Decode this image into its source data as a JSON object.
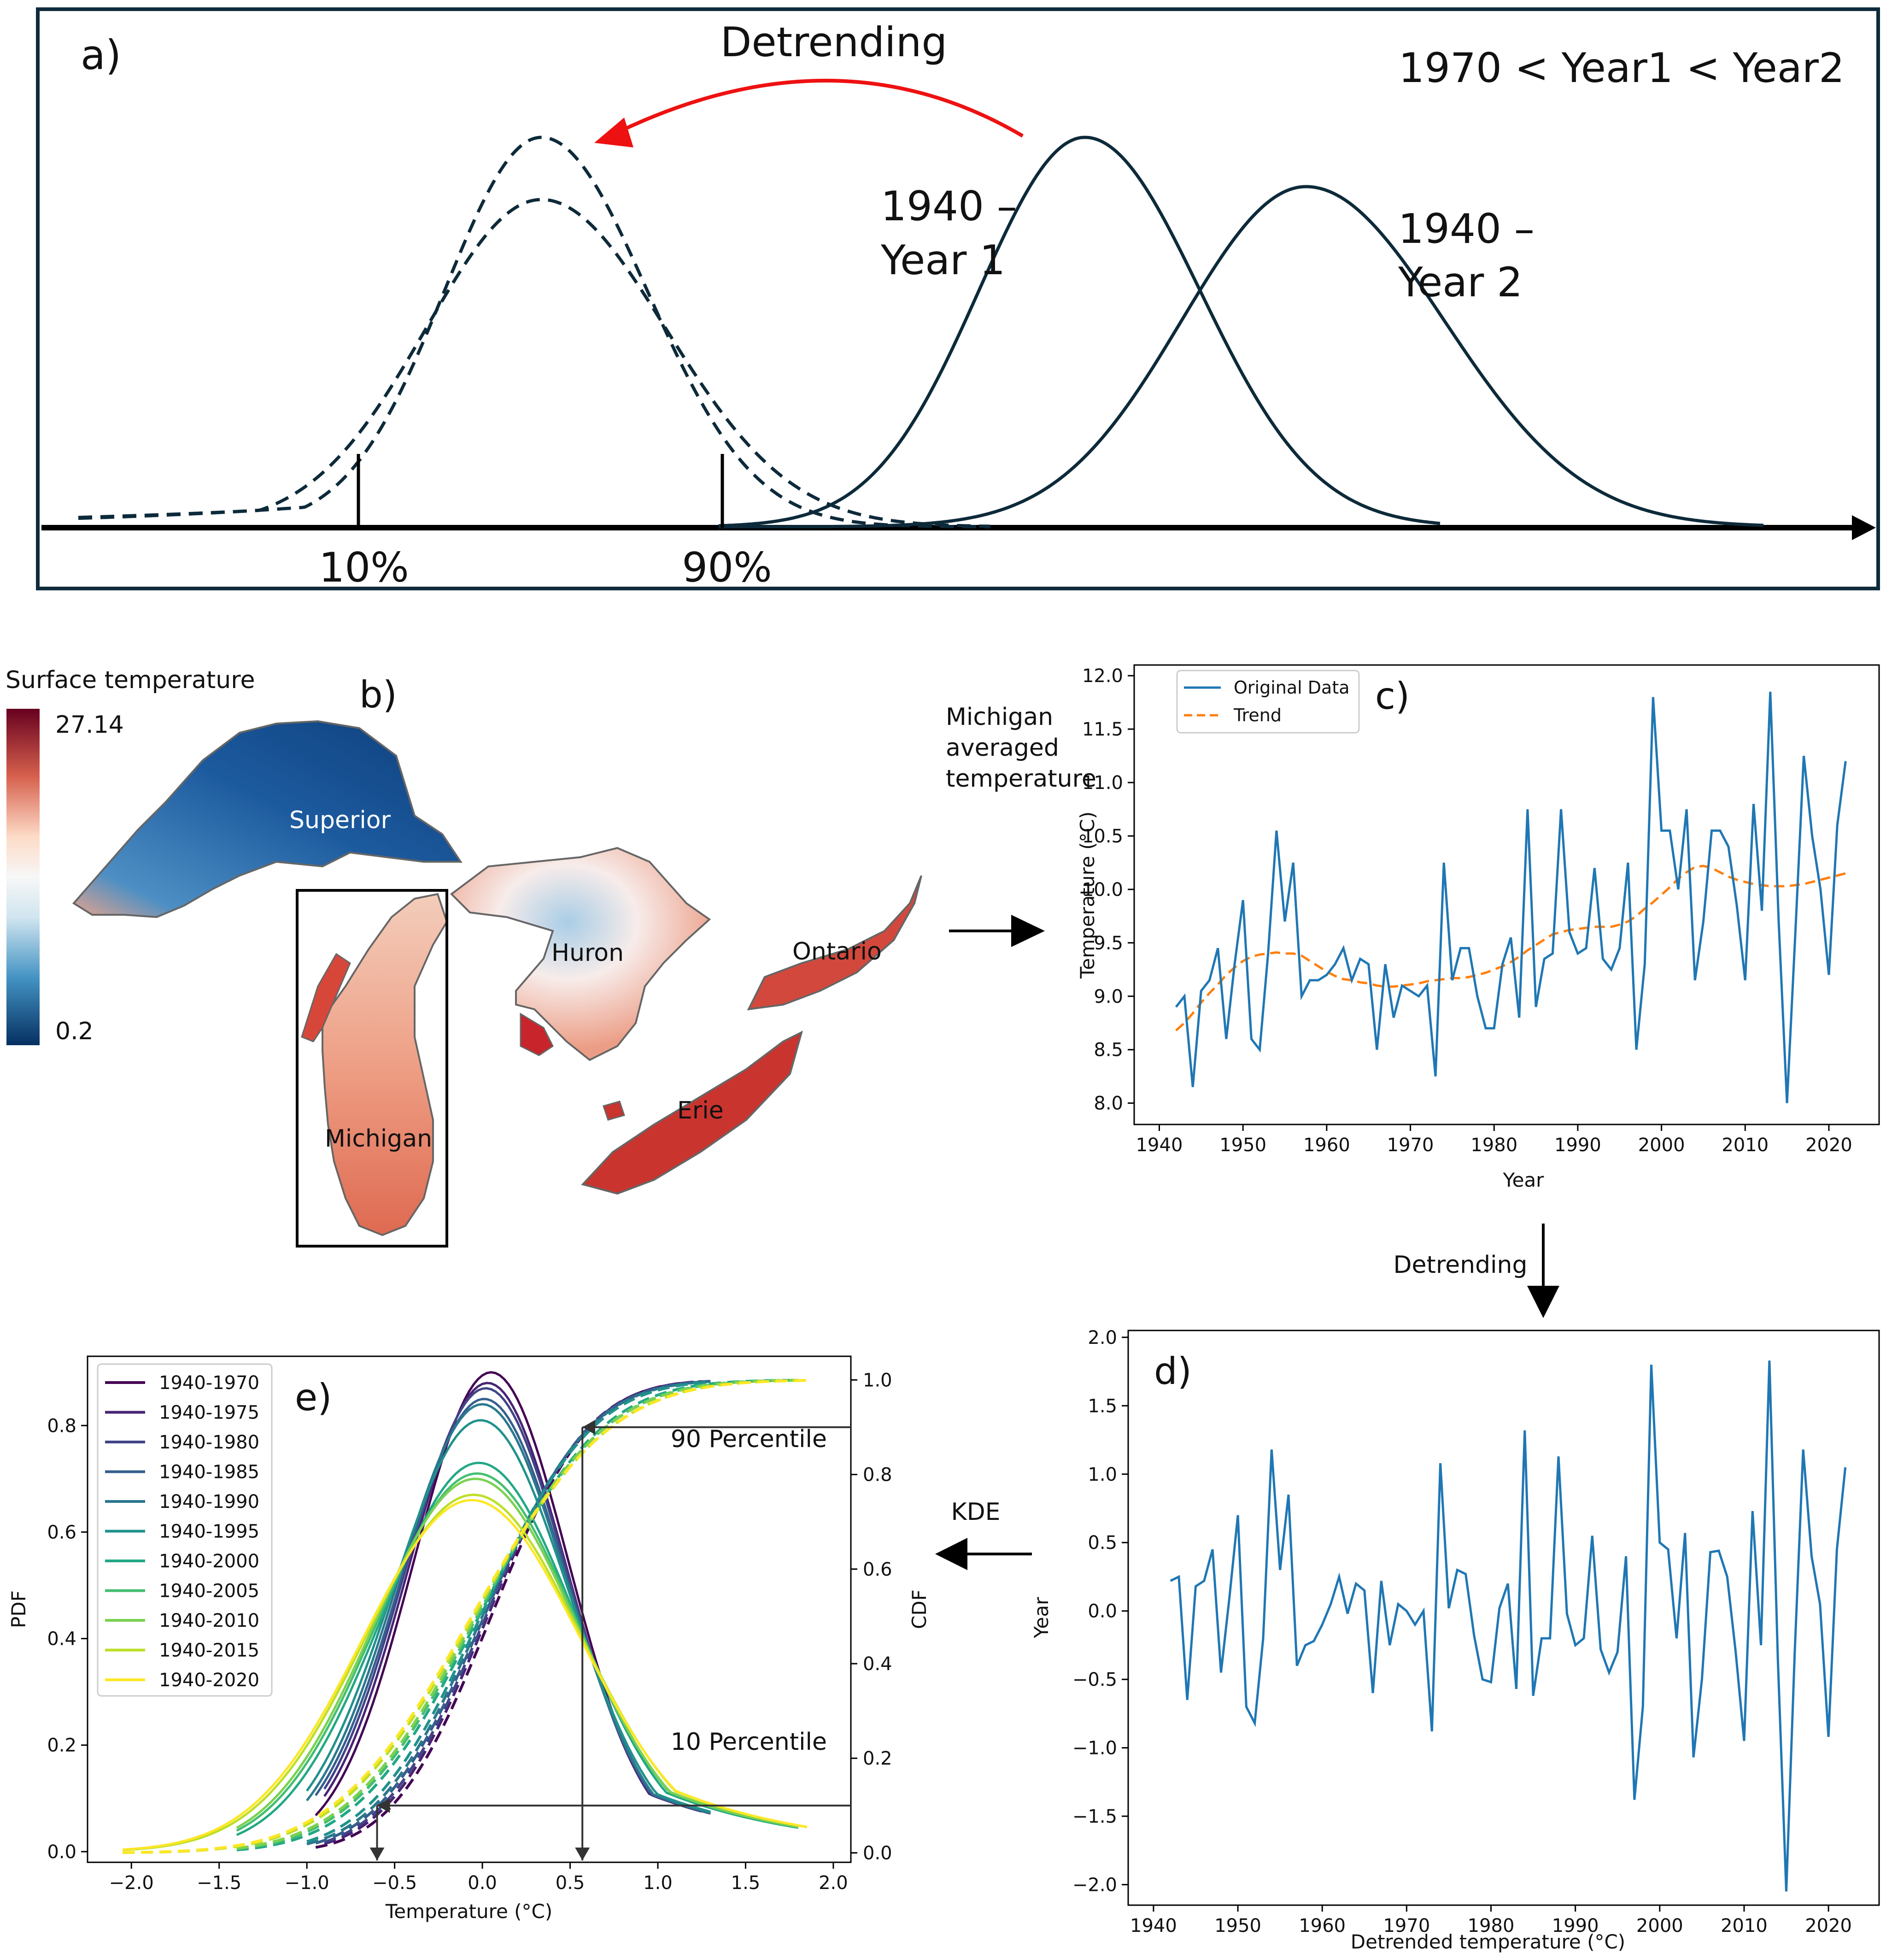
{
  "panel_a": {
    "label": "a)",
    "title": "Detrending",
    "condition": "1970 < Year1 < Year2",
    "curve1_label_line1": "1940 –",
    "curve1_label_line2": "Year 1",
    "curve2_label_line1": "1940 –",
    "curve2_label_line2": "Year 2",
    "p10_label": "10%",
    "p90_label": "90%",
    "colors": {
      "curve": "#0d2a3a",
      "arrow": "#ee1111",
      "frame": "#0f2b3c"
    }
  },
  "panel_b": {
    "label": "b)",
    "colorbar_title": "Surface temperature",
    "colorbar_max": "27.14",
    "colorbar_min": "0.2",
    "lakes": {
      "superior": "Superior",
      "michigan": "Michigan",
      "huron": "Huron",
      "erie": "Erie",
      "ontario": "Ontario"
    },
    "colors": {
      "cold": "#0b3d7a",
      "mid": "#f7f7f7",
      "warm": "#b2182b"
    }
  },
  "flow": {
    "michigan_line1": "Michigan",
    "michigan_line2": "averaged",
    "michigan_line3": "temperature",
    "detrending": "Detrending",
    "kde": "KDE"
  },
  "chart_data": [
    {
      "id": "c",
      "type": "line",
      "label": "c)",
      "xlabel": "Year",
      "ylabel": "Temperature (°C)",
      "xlim": [
        1937,
        2026
      ],
      "ylim": [
        7.8,
        12.1
      ],
      "xticks": [
        1940,
        1950,
        1960,
        1970,
        1980,
        1990,
        2000,
        2010,
        2020
      ],
      "yticks": [
        8.0,
        8.5,
        9.0,
        9.5,
        10.0,
        10.5,
        11.0,
        11.5,
        12.0
      ],
      "legend": [
        "Original Data",
        "Trend"
      ],
      "colors": [
        "#1f77b4",
        "#ff7f0e"
      ],
      "x_start": 1942,
      "original": [
        8.9,
        9.0,
        8.15,
        9.05,
        9.15,
        9.45,
        8.6,
        9.3,
        9.9,
        8.6,
        8.5,
        9.4,
        10.55,
        9.7,
        10.25,
        9.0,
        9.15,
        9.15,
        9.2,
        9.3,
        9.45,
        9.15,
        9.35,
        9.3,
        8.5,
        9.3,
        8.8,
        9.1,
        9.05,
        9.0,
        9.1,
        8.25,
        10.25,
        9.15,
        9.45,
        9.45,
        9.0,
        8.7,
        8.7,
        9.3,
        9.55,
        8.8,
        10.75,
        8.9,
        9.35,
        9.4,
        10.75,
        9.6,
        9.4,
        9.45,
        10.2,
        9.35,
        9.25,
        9.45,
        10.25,
        8.5,
        9.3,
        11.8,
        10.55,
        10.55,
        10.0,
        10.75,
        9.15,
        9.7,
        10.55,
        10.55,
        10.4,
        9.85,
        9.15,
        10.8,
        9.8,
        11.85,
        9.7,
        8.0,
        9.6,
        11.25,
        10.5,
        10.0,
        9.2,
        10.6,
        11.2
      ],
      "trend": [
        8.68,
        8.75,
        8.84,
        8.94,
        9.03,
        9.11,
        9.2,
        9.27,
        9.33,
        9.37,
        9.39,
        9.4,
        9.41,
        9.4,
        9.4,
        9.38,
        9.33,
        9.28,
        9.23,
        9.19,
        9.16,
        9.15,
        9.13,
        9.12,
        9.1,
        9.09,
        9.09,
        9.1,
        9.11,
        9.12,
        9.14,
        9.15,
        9.16,
        9.17,
        9.17,
        9.18,
        9.2,
        9.22,
        9.25,
        9.28,
        9.32,
        9.37,
        9.43,
        9.48,
        9.53,
        9.58,
        9.6,
        9.62,
        9.63,
        9.64,
        9.65,
        9.65,
        9.65,
        9.67,
        9.7,
        9.75,
        9.82,
        9.88,
        9.95,
        10.02,
        10.1,
        10.16,
        10.21,
        10.22,
        10.2,
        10.16,
        10.12,
        10.09,
        10.07,
        10.05,
        10.04,
        10.03,
        10.03,
        10.03,
        10.04,
        10.05,
        10.07,
        10.09,
        10.11,
        10.13,
        10.15
      ]
    },
    {
      "id": "d",
      "type": "line",
      "label": "d)",
      "xlabel": "Detrended temperature (°C)",
      "ylabel": "Year",
      "xlim": [
        1937,
        2026
      ],
      "ylim": [
        -2.15,
        2.05
      ],
      "xticks": [
        1940,
        1950,
        1960,
        1970,
        1980,
        1990,
        2000,
        2010,
        2020
      ],
      "yticks": [
        2.0,
        1.5,
        1.0,
        0.5,
        0.0,
        -0.5,
        -1.0,
        -1.5,
        -2.0
      ],
      "ytick_labels": [
        "2.0",
        "1.5",
        "1.0",
        "0.5",
        "0.0",
        "−0.5",
        "−1.0",
        "−1.5",
        "−2.0"
      ],
      "colors": [
        "#1f77b4"
      ],
      "x_start": 1942,
      "values": [
        0.22,
        0.25,
        -0.65,
        0.18,
        0.22,
        0.45,
        -0.45,
        0.1,
        0.7,
        -0.7,
        -0.82,
        -0.2,
        1.18,
        0.3,
        0.85,
        -0.4,
        -0.25,
        -0.22,
        -0.1,
        0.05,
        0.25,
        -0.02,
        0.2,
        0.15,
        -0.6,
        0.22,
        -0.25,
        0.05,
        0.0,
        -0.1,
        0.0,
        -0.88,
        1.08,
        0.02,
        0.3,
        0.27,
        -0.18,
        -0.5,
        -0.52,
        0.02,
        0.2,
        -0.57,
        1.32,
        -0.62,
        -0.2,
        -0.2,
        1.13,
        -0.02,
        -0.25,
        -0.2,
        0.55,
        -0.28,
        -0.45,
        -0.3,
        0.4,
        -1.38,
        -0.7,
        1.8,
        0.5,
        0.45,
        -0.2,
        0.57,
        -1.07,
        -0.5,
        0.43,
        0.44,
        0.25,
        -0.3,
        -0.95,
        0.73,
        -0.25,
        1.83,
        -0.35,
        -2.05,
        -0.3,
        1.18,
        0.4,
        0.05,
        -0.92,
        0.45,
        1.05
      ]
    },
    {
      "id": "e",
      "type": "line",
      "label": "e)",
      "xlabel": "Temperature (°C)",
      "ylabel": "PDF",
      "ylabel_right": "CDF",
      "xlim": [
        -2.25,
        2.1
      ],
      "ylim": [
        -0.02,
        0.93
      ],
      "ylim_right": [
        -0.02,
        1.05
      ],
      "xticks": [
        -2.0,
        -1.5,
        -1.0,
        -0.5,
        0.0,
        0.5,
        1.0,
        1.5,
        2.0
      ],
      "xtick_labels": [
        "−2.0",
        "−1.5",
        "−1.0",
        "−0.5",
        "0.0",
        "0.5",
        "1.0",
        "1.5",
        "2.0"
      ],
      "yticks": [
        0.0,
        0.2,
        0.4,
        0.6,
        0.8
      ],
      "yticks_right": [
        0.0,
        0.2,
        0.4,
        0.6,
        0.8,
        1.0
      ],
      "percentile_90_label": "90 Percentile",
      "percentile_10_label": "10 Percentile",
      "percentile_90": {
        "cdf": 0.9,
        "temperature": 0.57
      },
      "percentile_10": {
        "cdf": 0.1,
        "temperature": -0.6
      },
      "series": [
        {
          "name": "1940-1970",
          "color": "#440154",
          "mean": 0.05,
          "sd": 0.44,
          "peak": 0.9,
          "min": -0.95,
          "max": 1.2
        },
        {
          "name": "1940-1975",
          "color": "#482475",
          "mean": 0.03,
          "sd": 0.45,
          "peak": 0.88,
          "min": -0.9,
          "max": 1.25
        },
        {
          "name": "1940-1980",
          "color": "#414487",
          "mean": 0.02,
          "sd": 0.46,
          "peak": 0.87,
          "min": -0.9,
          "max": 1.3
        },
        {
          "name": "1940-1985",
          "color": "#355f8d",
          "mean": 0.01,
          "sd": 0.47,
          "peak": 0.85,
          "min": -0.95,
          "max": 1.3
        },
        {
          "name": "1940-1990",
          "color": "#2a788e",
          "mean": 0.0,
          "sd": 0.48,
          "peak": 0.84,
          "min": -1.0,
          "max": 1.3
        },
        {
          "name": "1940-1995",
          "color": "#21918c",
          "mean": -0.01,
          "sd": 0.5,
          "peak": 0.81,
          "min": -1.0,
          "max": 1.3
        },
        {
          "name": "1940-2000",
          "color": "#22a884",
          "mean": -0.02,
          "sd": 0.55,
          "peak": 0.73,
          "min": -1.4,
          "max": 1.8
        },
        {
          "name": "1940-2005",
          "color": "#44bf70",
          "mean": -0.03,
          "sd": 0.57,
          "peak": 0.71,
          "min": -1.4,
          "max": 1.8
        },
        {
          "name": "1940-2010",
          "color": "#7ad151",
          "mean": -0.04,
          "sd": 0.58,
          "peak": 0.7,
          "min": -1.4,
          "max": 1.8
        },
        {
          "name": "1940-2015",
          "color": "#bddf26",
          "mean": -0.05,
          "sd": 0.61,
          "peak": 0.67,
          "min": -2.05,
          "max": 1.85
        },
        {
          "name": "1940-2020",
          "color": "#fde725",
          "mean": -0.06,
          "sd": 0.62,
          "peak": 0.66,
          "min": -2.05,
          "max": 1.85
        }
      ]
    }
  ]
}
